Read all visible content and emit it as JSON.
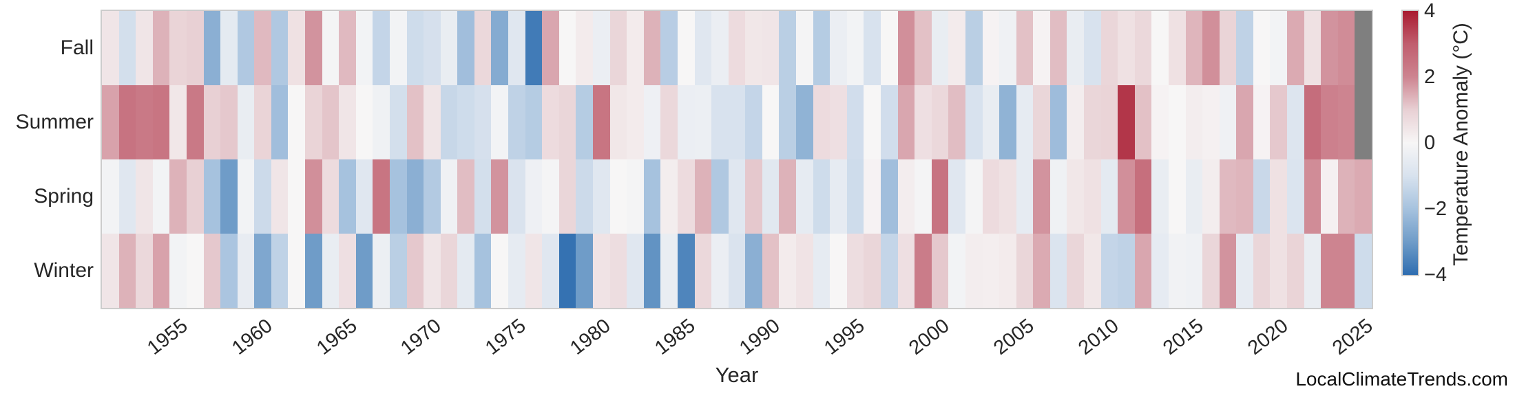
{
  "figure": {
    "xlabel": "Year",
    "watermark": "LocalClimateTrends.com",
    "colorbar_label": "Temperature Anomaly (°C)"
  },
  "chart_data": {
    "type": "heatmap",
    "title": "",
    "xlabel": "Year",
    "ylabel": "",
    "rows": [
      "Fall",
      "Summer",
      "Spring",
      "Winter"
    ],
    "years": [
      1951,
      1952,
      1953,
      1954,
      1955,
      1956,
      1957,
      1958,
      1959,
      1960,
      1961,
      1962,
      1963,
      1964,
      1965,
      1966,
      1967,
      1968,
      1969,
      1970,
      1971,
      1972,
      1973,
      1974,
      1975,
      1976,
      1977,
      1978,
      1979,
      1980,
      1981,
      1982,
      1983,
      1984,
      1985,
      1986,
      1987,
      1988,
      1989,
      1990,
      1991,
      1992,
      1993,
      1994,
      1995,
      1996,
      1997,
      1998,
      1999,
      2000,
      2001,
      2002,
      2003,
      2004,
      2005,
      2006,
      2007,
      2008,
      2009,
      2010,
      2011,
      2012,
      2013,
      2014,
      2015,
      2016,
      2017,
      2018,
      2019,
      2020,
      2021,
      2022,
      2023,
      2024,
      2025
    ],
    "x_tick_labels": [
      "1955",
      "1960",
      "1965",
      "1970",
      "1975",
      "1980",
      "1985",
      "1990",
      "1995",
      "2000",
      "2005",
      "2010",
      "2015",
      "2020",
      "2025"
    ],
    "series": [
      {
        "name": "Fall",
        "values": [
          0.45,
          -1.1,
          0.45,
          1.4,
          0.9,
          1.0,
          -2.5,
          -0.6,
          -1.8,
          1.3,
          -1.8,
          0.55,
          1.8,
          -0.1,
          1.3,
          -0.15,
          -1.4,
          -0.15,
          -1.2,
          -1.05,
          -0.45,
          -2.1,
          0.8,
          -2.6,
          -0.75,
          -3.7,
          1.55,
          0.0,
          0.3,
          -0.4,
          0.85,
          0.3,
          1.4,
          -1.65,
          0.0,
          -0.75,
          -0.4,
          0.7,
          0.4,
          0.45,
          -1.6,
          -0.1,
          -1.7,
          -0.4,
          -0.15,
          -1.0,
          0.0,
          1.85,
          1.2,
          -0.45,
          0.3,
          -1.6,
          0.1,
          -0.25,
          1.2,
          0.1,
          1.25,
          -0.45,
          -1.0,
          0.85,
          0.55,
          0.8,
          0.0,
          0.55,
          1.35,
          1.85,
          0.9,
          -1.5,
          0.0,
          -0.15,
          1.5,
          0.55,
          1.8,
          1.9,
          null
        ]
      },
      {
        "name": "Summer",
        "values": [
          1.6,
          2.45,
          2.3,
          2.4,
          0.4,
          2.3,
          1.0,
          1.1,
          -0.45,
          0.9,
          -2.1,
          0.0,
          0.9,
          1.15,
          0.45,
          0.0,
          -0.25,
          -1.1,
          1.2,
          0.45,
          -1.35,
          -1.2,
          -1.05,
          -0.15,
          -1.5,
          -1.7,
          0.7,
          0.85,
          -1.7,
          2.4,
          0.4,
          0.3,
          -0.3,
          0.8,
          -0.4,
          -0.35,
          -1.0,
          -1.0,
          -1.4,
          0.0,
          -1.6,
          -2.4,
          0.7,
          0.6,
          -1.15,
          0.0,
          -1.15,
          1.55,
          0.6,
          0.8,
          1.25,
          -1.0,
          -0.45,
          -2.4,
          -0.55,
          0.85,
          -2.15,
          0.25,
          0.85,
          0.9,
          3.6,
          1.2,
          0.1,
          0.0,
          0.25,
          0.15,
          -0.25,
          1.55,
          0.1,
          1.1,
          -0.85,
          2.6,
          2.1,
          2.0,
          null
        ]
      },
      {
        "name": "Spring",
        "values": [
          -0.15,
          -0.75,
          0.45,
          -0.15,
          1.4,
          1.0,
          -2.0,
          -3.0,
          -0.15,
          -1.25,
          0.45,
          0.0,
          1.85,
          0.7,
          -2.0,
          -0.75,
          2.4,
          -2.0,
          -2.5,
          -1.75,
          -0.25,
          1.25,
          -1.1,
          1.8,
          -0.95,
          -0.3,
          -0.1,
          0.85,
          -1.25,
          -0.75,
          0.0,
          -0.1,
          -2.0,
          0.25,
          0.7,
          1.4,
          -1.8,
          -0.75,
          1.1,
          -0.7,
          1.4,
          -0.55,
          -1.2,
          -0.55,
          -1.2,
          0.1,
          -2.1,
          0.25,
          -0.1,
          2.45,
          -0.75,
          -0.1,
          0.7,
          0.55,
          -0.55,
          1.8,
          -0.25,
          0.4,
          0.55,
          -0.6,
          1.85,
          2.55,
          -0.45,
          0.0,
          -0.45,
          0.25,
          1.3,
          1.35,
          -1.3,
          0.55,
          -0.9,
          1.9,
          0.15,
          1.4,
          1.5
        ]
      },
      {
        "name": "Winter",
        "values": [
          0.45,
          1.4,
          0.8,
          1.6,
          -0.15,
          0.0,
          1.1,
          -1.9,
          -0.5,
          -2.7,
          -1.5,
          0.0,
          -3.0,
          -0.45,
          0.6,
          -3.0,
          -0.35,
          -1.6,
          1.1,
          0.45,
          0.85,
          -0.6,
          -2.0,
          0.0,
          -0.55,
          0.45,
          -0.75,
          -3.9,
          -3.0,
          0.5,
          0.65,
          -0.75,
          -3.2,
          -0.45,
          -3.5,
          0.8,
          -0.4,
          -0.95,
          -2.5,
          1.2,
          0.3,
          0.5,
          -0.55,
          0.0,
          0.65,
          0.85,
          -1.4,
          0.6,
          2.2,
          1.1,
          -0.15,
          0.25,
          0.2,
          0.3,
          0.85,
          1.5,
          -0.9,
          0.85,
          0.4,
          -1.4,
          -1.5,
          1.55,
          -0.55,
          -0.2,
          -0.25,
          0.85,
          1.8,
          -0.55,
          0.85,
          0.55,
          0.9,
          -0.45,
          2.0,
          2.0,
          -1.2
        ]
      }
    ],
    "value_unit": "°C",
    "vmin": -4,
    "vmax": 4,
    "colorbar_ticks": [
      {
        "label": "4",
        "value": 4
      },
      {
        "label": "2",
        "value": 2
      },
      {
        "label": "0",
        "value": 0
      },
      {
        "label": "−2",
        "value": -2
      },
      {
        "label": "−4",
        "value": -4
      }
    ],
    "colorbar_label": "Temperature Anomaly (°C)",
    "colormap_stops": [
      {
        "value": -4,
        "color": "#2e6db0"
      },
      {
        "value": -3,
        "color": "#6f9cc8"
      },
      {
        "value": -2,
        "color": "#a6c2de"
      },
      {
        "value": -1,
        "color": "#d8e2ee"
      },
      {
        "value": 0,
        "color": "#f7f6f6"
      },
      {
        "value": 1,
        "color": "#e8d0d4"
      },
      {
        "value": 2,
        "color": "#cd8490"
      },
      {
        "value": 3,
        "color": "#c05e6e"
      },
      {
        "value": 4,
        "color": "#a91b30"
      }
    ],
    "missing_value_color": "#7f7f7f",
    "grid": false,
    "legend_position": "right-colorbar"
  }
}
